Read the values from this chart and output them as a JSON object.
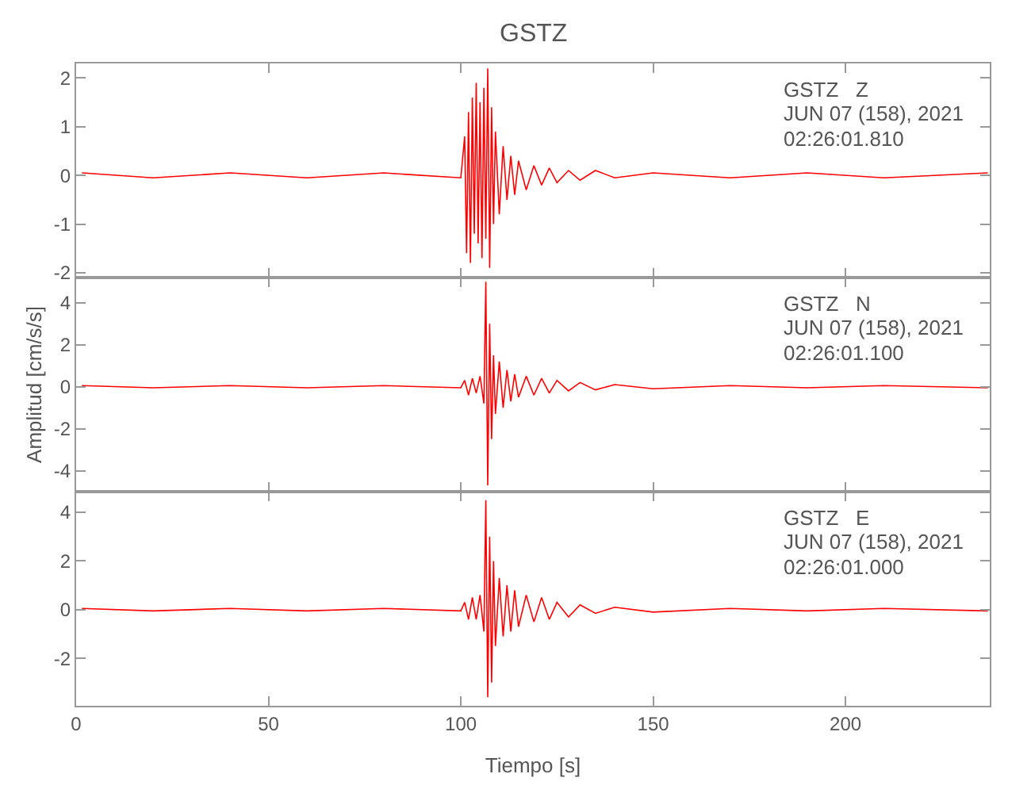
{
  "chart_data": [
    {
      "type": "line",
      "title": "GSTZ",
      "tick_labels": "y",
      "annotations": [
        "GSTZ   Z",
        "JUN 07 (158), 2021",
        "02:26:01.810"
      ],
      "xlim": [
        0,
        237.5
      ],
      "xticks": [
        0,
        50,
        100,
        150,
        200
      ],
      "ylim": [
        -2.1,
        2.3
      ],
      "yticks": [
        -2,
        -1,
        0,
        1,
        2
      ],
      "series": [
        {
          "color": "#ff0000",
          "x": [
            1.5,
            20,
            40,
            60,
            80,
            100,
            101,
            101.5,
            102,
            102.5,
            103,
            103.5,
            104,
            104.5,
            105,
            105.5,
            106,
            106.5,
            107,
            107.5,
            108,
            108.5,
            109,
            110,
            111,
            112,
            113,
            114,
            115,
            117,
            119,
            121,
            123,
            125,
            128,
            131,
            135,
            140,
            150,
            170,
            190,
            210,
            237
          ],
          "values": [
            0.05,
            -0.05,
            0.05,
            -0.05,
            0.05,
            -0.05,
            0.8,
            -1.6,
            1.3,
            -1.8,
            1.6,
            -1.2,
            1.9,
            -1.4,
            1.5,
            -1.7,
            1.8,
            -1.3,
            2.2,
            -1.9,
            1.4,
            -1.0,
            0.9,
            -0.8,
            0.6,
            -0.5,
            0.4,
            -0.4,
            0.3,
            -0.3,
            0.2,
            -0.2,
            0.15,
            -0.15,
            0.1,
            -0.1,
            0.1,
            -0.05,
            0.05,
            -0.05,
            0.05,
            -0.05,
            0.05
          ]
        }
      ]
    },
    {
      "type": "line",
      "ylabel": "Amplitud [cm/s/s]",
      "tick_labels": "y",
      "annotations": [
        "GSTZ   N",
        "JUN 07 (158), 2021",
        "02:26:01.100"
      ],
      "xlim": [
        0,
        237.5
      ],
      "xticks": [
        0,
        50,
        100,
        150,
        200
      ],
      "ylim": [
        -5.0,
        5.2
      ],
      "yticks": [
        -4,
        -2,
        0,
        2,
        4
      ],
      "series": [
        {
          "color": "#ff0000",
          "x": [
            1.5,
            20,
            40,
            60,
            80,
            100,
            101,
            102,
            103,
            104,
            105,
            106,
            106.5,
            107,
            107.5,
            108,
            108.5,
            109,
            110,
            111,
            112,
            113,
            114,
            115,
            117,
            119,
            121,
            123,
            125,
            128,
            131,
            135,
            140,
            150,
            170,
            190,
            210,
            237
          ],
          "values": [
            0.05,
            -0.05,
            0.05,
            -0.05,
            0.05,
            -0.05,
            0.3,
            -0.4,
            0.4,
            -0.3,
            0.5,
            -0.8,
            5.0,
            -4.7,
            3.0,
            -2.5,
            1.5,
            -1.3,
            1.2,
            -1.0,
            0.8,
            -0.7,
            0.6,
            -0.5,
            0.5,
            -0.4,
            0.4,
            -0.3,
            0.3,
            -0.2,
            0.2,
            -0.15,
            0.1,
            -0.1,
            0.05,
            -0.05,
            0.05,
            -0.05
          ]
        }
      ]
    },
    {
      "type": "line",
      "xlabel": "Tiempo [s]",
      "annotations": [
        "GSTZ   E",
        "JUN 07 (158), 2021",
        "02:26:01.000"
      ],
      "xlim": [
        0,
        237.5
      ],
      "xticks": [
        0,
        50,
        100,
        150,
        200
      ],
      "ylim": [
        -3.95,
        4.85
      ],
      "yticks": [
        -2,
        0,
        2,
        4
      ],
      "series": [
        {
          "color": "#ff0000",
          "x": [
            1.5,
            20,
            40,
            60,
            80,
            100,
            101,
            102,
            103,
            104,
            105,
            106,
            106.5,
            107,
            107.5,
            108,
            108.5,
            109,
            110,
            111,
            112,
            113,
            114,
            115,
            117,
            119,
            121,
            123,
            125,
            128,
            131,
            135,
            140,
            150,
            170,
            190,
            210,
            237
          ],
          "values": [
            0.05,
            -0.05,
            0.05,
            -0.05,
            0.05,
            -0.05,
            0.3,
            -0.4,
            0.5,
            -0.4,
            0.6,
            -0.9,
            4.5,
            -3.6,
            3.0,
            -3.0,
            2.0,
            -1.5,
            1.3,
            -1.1,
            1.0,
            -0.9,
            0.8,
            -0.7,
            0.6,
            -0.5,
            0.5,
            -0.4,
            0.3,
            -0.3,
            0.2,
            -0.15,
            0.1,
            -0.1,
            0.05,
            -0.05,
            0.05,
            -0.05
          ]
        }
      ]
    }
  ]
}
